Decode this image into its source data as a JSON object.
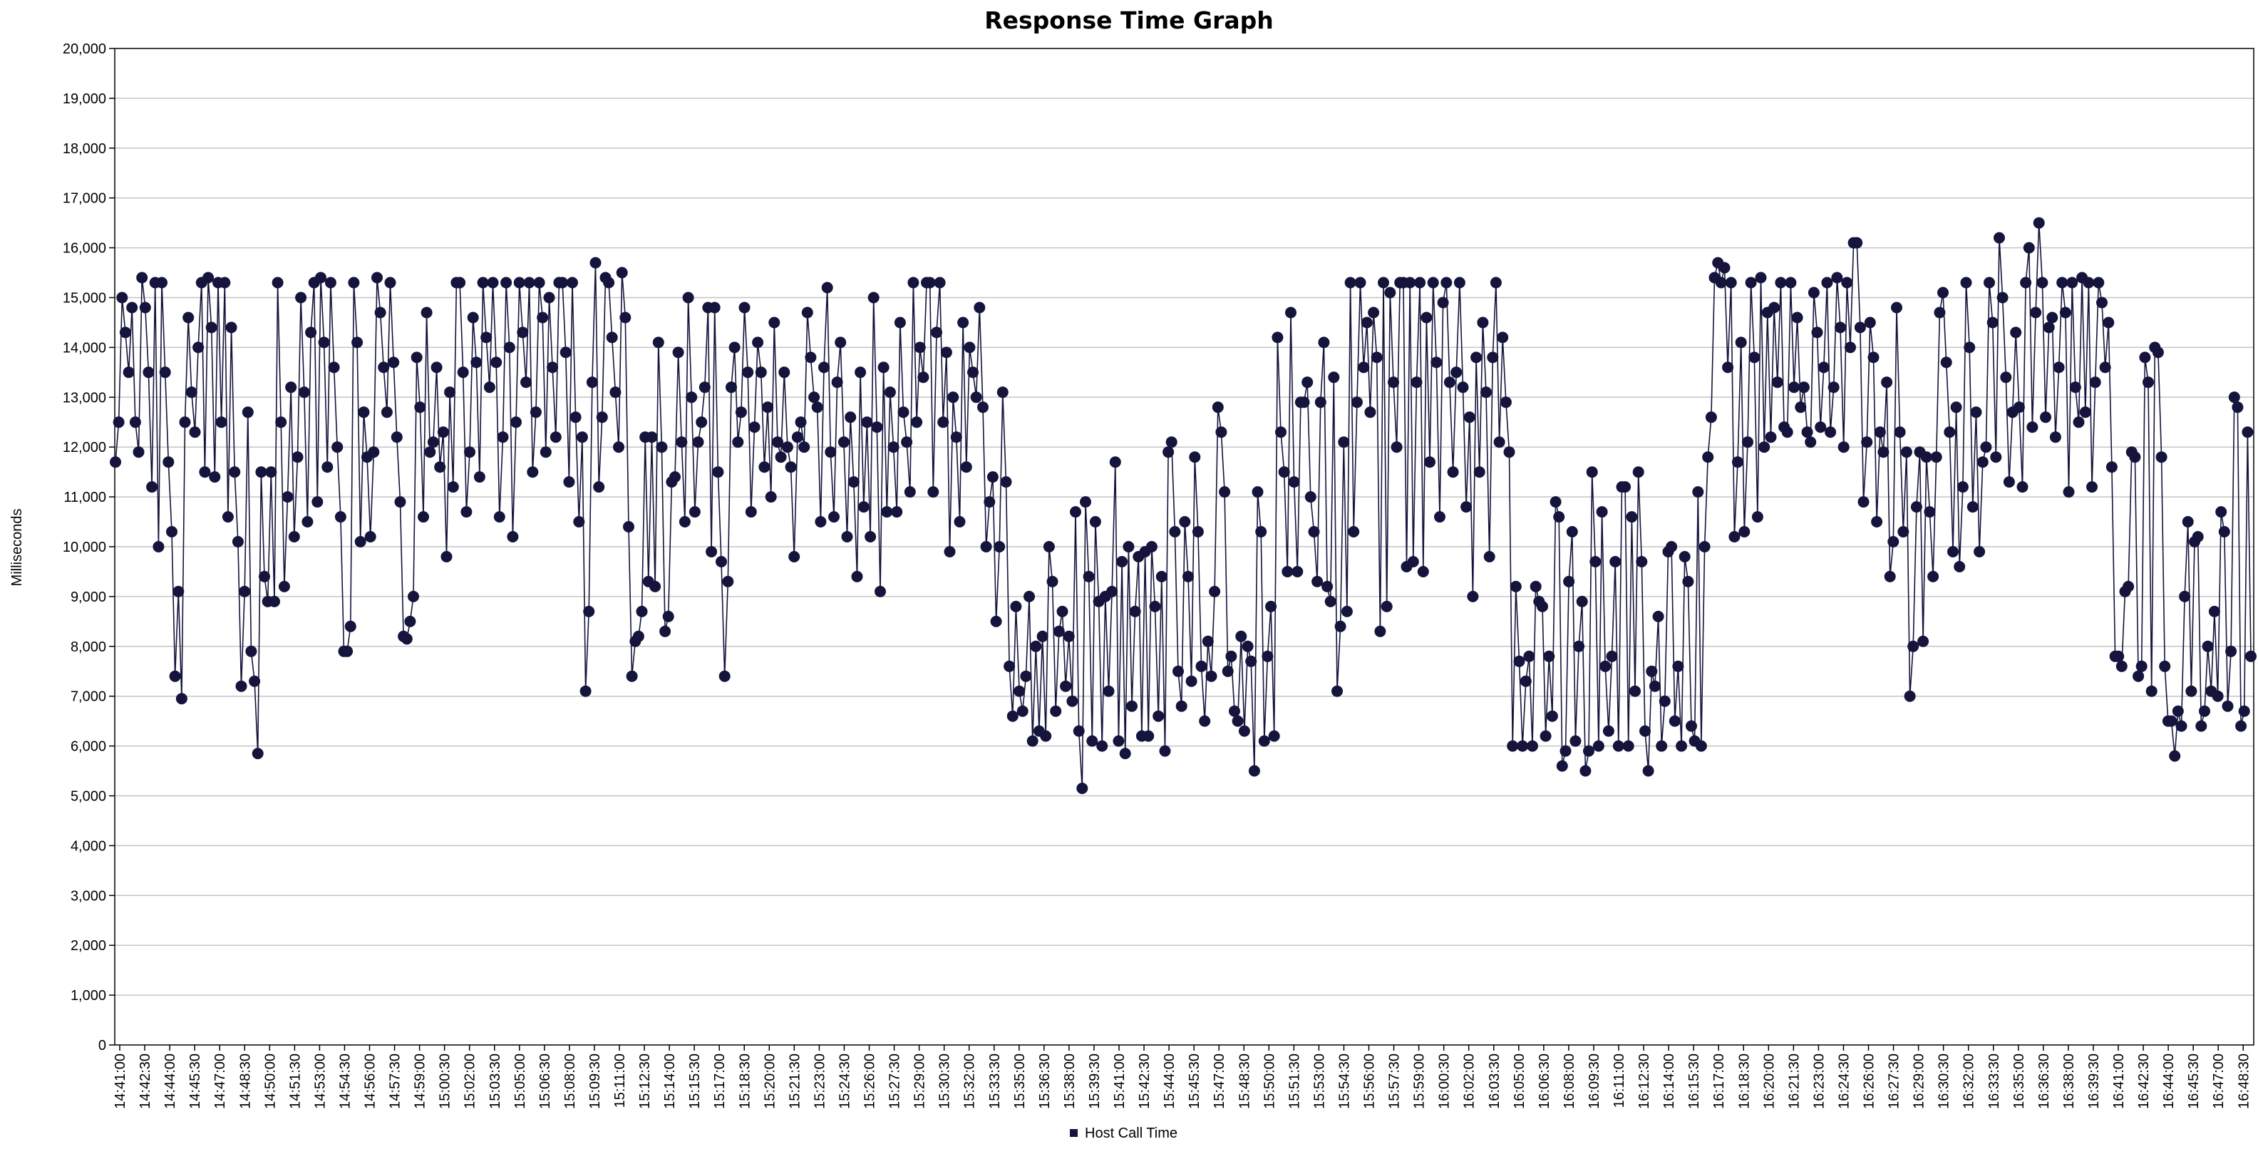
{
  "chart_data": {
    "type": "line",
    "title": "Response Time Graph",
    "ylabel": "Milliseconds",
    "xlabel": "",
    "ylim": [
      0,
      20000
    ],
    "grid": true,
    "legend_position": "bottom",
    "y_ticks": [
      "0",
      "1,000",
      "2,000",
      "3,000",
      "4,000",
      "5,000",
      "6,000",
      "7,000",
      "8,000",
      "9,000",
      "10,000",
      "11,000",
      "12,000",
      "13,000",
      "14,000",
      "15,000",
      "16,000",
      "17,000",
      "18,000",
      "19,000",
      "20,000"
    ],
    "x_ticks": [
      "14:41:00",
      "14:42:30",
      "14:44:00",
      "14:45:30",
      "14:47:00",
      "14:48:30",
      "14:50:00",
      "14:51:30",
      "14:53:00",
      "14:54:30",
      "14:56:00",
      "14:57:30",
      "14:59:00",
      "15:00:30",
      "15:02:00",
      "15:03:30",
      "15:05:00",
      "15:06:30",
      "15:08:00",
      "15:09:30",
      "15:11:00",
      "15:12:30",
      "15:14:00",
      "15:15:30",
      "15:17:00",
      "15:18:30",
      "15:20:00",
      "15:21:30",
      "15:23:00",
      "15:24:30",
      "15:26:00",
      "15:27:30",
      "15:29:00",
      "15:30:30",
      "15:32:00",
      "15:33:30",
      "15:35:00",
      "15:36:30",
      "15:38:00",
      "15:39:30",
      "15:41:00",
      "15:42:30",
      "15:44:00",
      "15:45:30",
      "15:47:00",
      "15:48:30",
      "15:50:00",
      "15:51:30",
      "15:53:00",
      "15:54:30",
      "15:56:00",
      "15:57:30",
      "15:59:00",
      "16:00:30",
      "16:02:00",
      "16:03:30",
      "16:05:00",
      "16:06:30",
      "16:08:00",
      "16:09:30",
      "16:11:00",
      "16:12:30",
      "16:14:00",
      "16:15:30",
      "16:17:00",
      "16:18:30",
      "16:20:00",
      "16:21:30",
      "16:23:00",
      "16:24:30",
      "16:26:00",
      "16:27:30",
      "16:29:00",
      "16:30:30",
      "16:32:00",
      "16:33:30",
      "16:35:00",
      "16:36:30",
      "16:38:00",
      "16:39:30",
      "16:41:00",
      "16:42:30",
      "16:44:00",
      "16:45:30",
      "16:47:00",
      "16:48:30"
    ],
    "series": [
      {
        "name": "Host Call Time",
        "color": "#14143c",
        "values": [
          11700,
          12500,
          15000,
          14300,
          13500,
          14800,
          12500,
          11900,
          15400,
          14800,
          13500,
          11200,
          15300,
          10000,
          15300,
          13500,
          11700,
          10300,
          7400,
          9100,
          6950,
          12500,
          14600,
          13100,
          12300,
          14000,
          15300,
          11500,
          15400,
          14400,
          11400,
          15300,
          12500,
          15300,
          10600,
          14400,
          11500,
          10100,
          7200,
          9100,
          12700,
          7900,
          7300,
          5850,
          11500,
          9400,
          8900,
          11500,
          8900,
          15300,
          12500,
          9200,
          11000,
          13200,
          10200,
          11800,
          15000,
          13100,
          10500,
          14300,
          15300,
          10900,
          15400,
          14100,
          11600,
          15300,
          13600,
          12000,
          10600,
          7900,
          7900,
          8400,
          15300,
          14100,
          10100,
          12700,
          11800,
          10200,
          11900,
          15400,
          14700,
          13600,
          12700,
          15300,
          13700,
          12200,
          10900,
          8200,
          8150,
          8500,
          9000,
          13800,
          12800,
          10600,
          14700,
          11900,
          12100,
          13600,
          11600,
          12300,
          9800,
          13100,
          11200,
          15300,
          15300,
          13500,
          10700,
          11900,
          14600,
          13700,
          11400,
          15300,
          14200,
          13200,
          15300,
          13700,
          10600,
          12200,
          15300,
          14000,
          10200,
          12500,
          15300,
          14300,
          13300,
          15300,
          11500,
          12700,
          15300,
          14600,
          11900,
          15000,
          13600,
          12200,
          15300,
          15300,
          13900,
          11300,
          15300,
          12600,
          10500,
          12200,
          7100,
          8700,
          13300,
          15700,
          11200,
          12600,
          15400,
          15300,
          14200,
          13100,
          12000,
          15500,
          14600,
          10400,
          7400,
          8100,
          8200,
          8700,
          12200,
          9300,
          12200,
          9200,
          14100,
          12000,
          8300,
          8600,
          11300,
          11400,
          13900,
          12100,
          10500,
          15000,
          13000,
          10700,
          12100,
          12500,
          13200,
          14800,
          9900,
          14800,
          11500,
          9700,
          7400,
          9300,
          13200,
          14000,
          12100,
          12700,
          14800,
          13500,
          10700,
          12400,
          14100,
          13500,
          11600,
          12800,
          11000,
          14500,
          12100,
          11800,
          13500,
          12000,
          11600,
          9800,
          12200,
          12500,
          12000,
          14700,
          13800,
          13000,
          12800,
          10500,
          13600,
          15200,
          11900,
          10600,
          13300,
          14100,
          12100,
          10200,
          12600,
          11300,
          9400,
          13500,
          10800,
          12500,
          10200,
          15000,
          12400,
          9100,
          13600,
          10700,
          13100,
          12000,
          10700,
          14500,
          12700,
          12100,
          11100,
          15300,
          12500,
          14000,
          13400,
          15300,
          15300,
          11100,
          14300,
          15300,
          12500,
          13900,
          9900,
          13000,
          12200,
          10500,
          14500,
          11600,
          14000,
          13500,
          13000,
          14800,
          12800,
          10000,
          10900,
          11400,
          8500,
          10000,
          13100,
          11300,
          7600,
          6600,
          8800,
          7100,
          6700,
          7400,
          9000,
          6100,
          8000,
          6300,
          8200,
          6200,
          10000,
          9300,
          6700,
          8300,
          8700,
          7200,
          8200,
          6900,
          10700,
          6300,
          5150,
          10900,
          9400,
          6100,
          10500,
          8900,
          6000,
          9000,
          7100,
          9100,
          11700,
          6100,
          9700,
          5850,
          10000,
          6800,
          8700,
          9800,
          6200,
          9900,
          6200,
          10000,
          8800,
          6600,
          9400,
          5900,
          11900,
          12100,
          10300,
          7500,
          6800,
          10500,
          9400,
          7300,
          11800,
          10300,
          7600,
          6500,
          8100,
          7400,
          9100,
          12800,
          12300,
          11100,
          7500,
          7800,
          6700,
          6500,
          8200,
          6300,
          8000,
          7700,
          5500,
          11100,
          10300,
          6100,
          7800,
          8800,
          6200,
          14200,
          12300,
          11500,
          9500,
          14700,
          11300,
          9500,
          12900,
          12900,
          13300,
          11000,
          10300,
          9300,
          12900,
          14100,
          9200,
          8900,
          13400,
          7100,
          8400,
          12100,
          8700,
          15300,
          10300,
          12900,
          15300,
          13600,
          14500,
          12700,
          14700,
          13800,
          8300,
          15300,
          8800,
          15100,
          13300,
          12000,
          15300,
          15300,
          9600,
          15300,
          9700,
          13300,
          15300,
          9500,
          14600,
          11700,
          15300,
          13700,
          10600,
          14900,
          15300,
          13300,
          11500,
          13500,
          15300,
          13200,
          10800,
          12600,
          9000,
          13800,
          11500,
          14500,
          13100,
          9800,
          13800,
          15300,
          12100,
          14200,
          12900,
          11900,
          6000,
          9200,
          7700,
          6000,
          7300,
          7800,
          6000,
          9200,
          8900,
          8800,
          6200,
          7800,
          6600,
          10900,
          10600,
          5600,
          5900,
          9300,
          10300,
          6100,
          8000,
          8900,
          5500,
          5900,
          11500,
          9700,
          6000,
          10700,
          7600,
          6300,
          7800,
          9700,
          6000,
          11200,
          11200,
          6000,
          10600,
          7100,
          11500,
          9700,
          6300,
          5500,
          7500,
          7200,
          8600,
          6000,
          6900,
          9900,
          10000,
          6500,
          7600,
          6000,
          9800,
          9300,
          6400,
          6100,
          11100,
          6000,
          10000,
          11800,
          12600,
          15400,
          15700,
          15300,
          15600,
          13600,
          15300,
          10200,
          11700,
          14100,
          10300,
          12100,
          15300,
          13800,
          10600,
          15400,
          12000,
          14700,
          12200,
          14800,
          13300,
          15300,
          12400,
          12300,
          15300,
          13200,
          14600,
          12800,
          13200,
          12300,
          12100,
          15100,
          14300,
          12400,
          13600,
          15300,
          12300,
          13200,
          15400,
          14400,
          12000,
          15300,
          14000,
          16100,
          16100,
          14400,
          10900,
          12100,
          14500,
          13800,
          10500,
          12300,
          11900,
          13300,
          9400,
          10100,
          14800,
          12300,
          10300,
          11900,
          7000,
          8000,
          10800,
          11900,
          8100,
          11800,
          10700,
          9400,
          11800,
          14700,
          15100,
          13700,
          12300,
          9900,
          12800,
          9600,
          11200,
          15300,
          14000,
          10800,
          12700,
          9900,
          11700,
          12000,
          15300,
          14500,
          11800,
          16200,
          15000,
          13400,
          11300,
          12700,
          14300,
          12800,
          11200,
          15300,
          16000,
          12400,
          14700,
          16500,
          15300,
          12600,
          14400,
          14600,
          12200,
          13600,
          15300,
          14700,
          11100,
          15300,
          13200,
          12500,
          15400,
          12700,
          15300,
          11200,
          13300,
          15300,
          14900,
          13600,
          14500,
          11600,
          7800,
          7800,
          7600,
          9100,
          9200,
          11900,
          11800,
          7400,
          7600,
          13800,
          13300,
          7100,
          14000,
          13900,
          11800,
          7600,
          6500,
          6500,
          5800,
          6700,
          6400,
          9000,
          10500,
          7100,
          10100,
          10200,
          6400,
          6700,
          8000,
          7100,
          8700,
          7000,
          10700,
          10300,
          6800,
          7900,
          13000,
          12800,
          6400,
          6700,
          12300,
          7800
        ]
      }
    ]
  }
}
